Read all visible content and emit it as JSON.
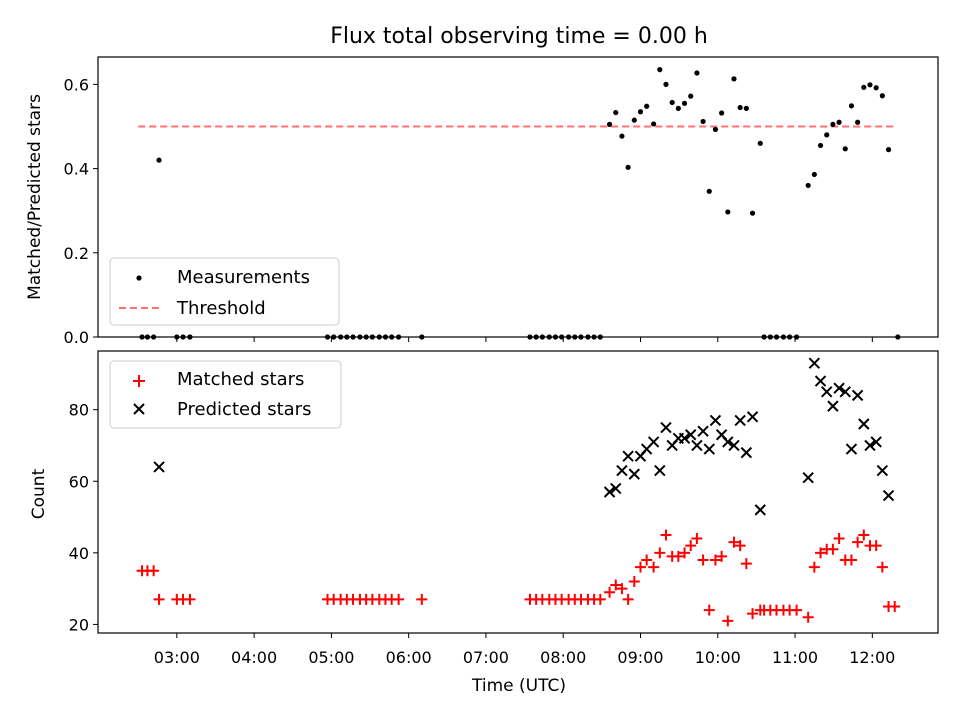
{
  "chart_data": [
    {
      "type": "scatter",
      "title": "Flux total observing time = 0.00 h",
      "xlabel": "",
      "ylabel": "Matched/Predicted stars",
      "ylim": [
        0,
        0.665
      ],
      "yticks": [
        0.0,
        0.2,
        0.4,
        0.6
      ],
      "ytick_labels": [
        "0.0",
        "0.2",
        "0.4",
        "0.6"
      ],
      "legend_position": "lower-left",
      "threshold": {
        "name": "Threshold",
        "y": 0.5,
        "x_range": [
          2.5,
          12.3
        ],
        "color": "#ff7070",
        "style": "dashed"
      },
      "series": [
        {
          "name": "Measurements",
          "marker": "dot",
          "color": "#000000",
          "points": [
            [
              2.55,
              0
            ],
            [
              2.62,
              0
            ],
            [
              2.7,
              0
            ],
            [
              2.77,
              0.42
            ],
            [
              3.0,
              0
            ],
            [
              3.08,
              0
            ],
            [
              3.17,
              0
            ],
            [
              4.95,
              0
            ],
            [
              5.03,
              0
            ],
            [
              5.12,
              0
            ],
            [
              5.2,
              0
            ],
            [
              5.28,
              0
            ],
            [
              5.37,
              0
            ],
            [
              5.45,
              0
            ],
            [
              5.53,
              0
            ],
            [
              5.62,
              0
            ],
            [
              5.7,
              0
            ],
            [
              5.78,
              0
            ],
            [
              5.87,
              0
            ],
            [
              6.17,
              0
            ],
            [
              7.57,
              0
            ],
            [
              7.65,
              0
            ],
            [
              7.73,
              0
            ],
            [
              7.82,
              0
            ],
            [
              7.9,
              0
            ],
            [
              7.98,
              0
            ],
            [
              8.07,
              0
            ],
            [
              8.15,
              0
            ],
            [
              8.23,
              0
            ],
            [
              8.32,
              0
            ],
            [
              8.4,
              0
            ],
            [
              8.48,
              0
            ],
            [
              8.6,
              0.505
            ],
            [
              8.68,
              0.533
            ],
            [
              8.76,
              0.477
            ],
            [
              8.84,
              0.403
            ],
            [
              8.92,
              0.515
            ],
            [
              9.0,
              0.535
            ],
            [
              9.08,
              0.548
            ],
            [
              9.17,
              0.506
            ],
            [
              9.25,
              0.635
            ],
            [
              9.33,
              0.6
            ],
            [
              9.41,
              0.557
            ],
            [
              9.49,
              0.543
            ],
            [
              9.57,
              0.555
            ],
            [
              9.65,
              0.572
            ],
            [
              9.73,
              0.627
            ],
            [
              9.81,
              0.512
            ],
            [
              9.89,
              0.346
            ],
            [
              9.97,
              0.493
            ],
            [
              10.05,
              0.532
            ],
            [
              10.13,
              0.297
            ],
            [
              10.21,
              0.613
            ],
            [
              10.29,
              0.545
            ],
            [
              10.37,
              0.543
            ],
            [
              10.45,
              0.294
            ],
            [
              10.55,
              0.46
            ],
            [
              10.6,
              0
            ],
            [
              10.68,
              0
            ],
            [
              10.76,
              0
            ],
            [
              10.85,
              0
            ],
            [
              10.93,
              0
            ],
            [
              11.02,
              0
            ],
            [
              11.17,
              0.36
            ],
            [
              11.25,
              0.386
            ],
            [
              11.33,
              0.455
            ],
            [
              11.41,
              0.48
            ],
            [
              11.49,
              0.505
            ],
            [
              11.57,
              0.51
            ],
            [
              11.65,
              0.447
            ],
            [
              11.73,
              0.549
            ],
            [
              11.81,
              0.51
            ],
            [
              11.89,
              0.593
            ],
            [
              11.97,
              0.599
            ],
            [
              12.05,
              0.592
            ],
            [
              12.13,
              0.573
            ],
            [
              12.21,
              0.445
            ],
            [
              12.33,
              0
            ]
          ]
        }
      ]
    },
    {
      "type": "scatter",
      "title": "",
      "xlabel": "Time (UTC)",
      "ylabel": "Count",
      "ylim": [
        17.6,
        96.4
      ],
      "yticks": [
        20,
        40,
        60,
        80
      ],
      "ytick_labels": [
        "20",
        "40",
        "60",
        "80"
      ],
      "xlim": [
        1.98,
        12.85
      ],
      "xticks": [
        3,
        4,
        5,
        6,
        7,
        8,
        9,
        10,
        11,
        12
      ],
      "xtick_labels": [
        "03:00",
        "04:00",
        "05:00",
        "06:00",
        "07:00",
        "08:00",
        "09:00",
        "10:00",
        "11:00",
        "12:00"
      ],
      "legend_position": "upper-left",
      "series": [
        {
          "name": "Matched stars",
          "marker": "plus",
          "color": "#ff0000",
          "points": [
            [
              2.55,
              35
            ],
            [
              2.62,
              35
            ],
            [
              2.7,
              35
            ],
            [
              2.77,
              27
            ],
            [
              3.0,
              27
            ],
            [
              3.08,
              27
            ],
            [
              3.17,
              27
            ],
            [
              4.95,
              27
            ],
            [
              5.03,
              27
            ],
            [
              5.12,
              27
            ],
            [
              5.2,
              27
            ],
            [
              5.28,
              27
            ],
            [
              5.37,
              27
            ],
            [
              5.45,
              27
            ],
            [
              5.53,
              27
            ],
            [
              5.62,
              27
            ],
            [
              5.7,
              27
            ],
            [
              5.78,
              27
            ],
            [
              5.87,
              27
            ],
            [
              6.17,
              27
            ],
            [
              7.57,
              27
            ],
            [
              7.65,
              27
            ],
            [
              7.73,
              27
            ],
            [
              7.82,
              27
            ],
            [
              7.9,
              27
            ],
            [
              7.98,
              27
            ],
            [
              8.07,
              27
            ],
            [
              8.15,
              27
            ],
            [
              8.23,
              27
            ],
            [
              8.32,
              27
            ],
            [
              8.4,
              27
            ],
            [
              8.48,
              27
            ],
            [
              8.6,
              29
            ],
            [
              8.68,
              31
            ],
            [
              8.76,
              30
            ],
            [
              8.84,
              27
            ],
            [
              8.92,
              32
            ],
            [
              9.0,
              36
            ],
            [
              9.08,
              38
            ],
            [
              9.17,
              36
            ],
            [
              9.25,
              40
            ],
            [
              9.33,
              45
            ],
            [
              9.41,
              39
            ],
            [
              9.49,
              39
            ],
            [
              9.57,
              40
            ],
            [
              9.65,
              42
            ],
            [
              9.73,
              44
            ],
            [
              9.81,
              38
            ],
            [
              9.89,
              24
            ],
            [
              9.97,
              38
            ],
            [
              10.05,
              39
            ],
            [
              10.13,
              21
            ],
            [
              10.21,
              43
            ],
            [
              10.29,
              42
            ],
            [
              10.37,
              37
            ],
            [
              10.45,
              23
            ],
            [
              10.55,
              24
            ],
            [
              10.6,
              24
            ],
            [
              10.68,
              24
            ],
            [
              10.76,
              24
            ],
            [
              10.85,
              24
            ],
            [
              10.93,
              24
            ],
            [
              11.02,
              24
            ],
            [
              11.17,
              22
            ],
            [
              11.25,
              36
            ],
            [
              11.33,
              40
            ],
            [
              11.41,
              41
            ],
            [
              11.49,
              41
            ],
            [
              11.57,
              44
            ],
            [
              11.65,
              38
            ],
            [
              11.73,
              38
            ],
            [
              11.81,
              43
            ],
            [
              11.89,
              45
            ],
            [
              11.97,
              42
            ],
            [
              12.05,
              42
            ],
            [
              12.13,
              36
            ],
            [
              12.21,
              25
            ],
            [
              12.29,
              25
            ]
          ]
        },
        {
          "name": "Predicted stars",
          "marker": "x",
          "color": "#000000",
          "points": [
            [
              2.77,
              64
            ],
            [
              8.6,
              57
            ],
            [
              8.68,
              58
            ],
            [
              8.76,
              63
            ],
            [
              8.84,
              67
            ],
            [
              8.92,
              62
            ],
            [
              9.0,
              67
            ],
            [
              9.08,
              69
            ],
            [
              9.17,
              71
            ],
            [
              9.25,
              63
            ],
            [
              9.33,
              75
            ],
            [
              9.41,
              70
            ],
            [
              9.49,
              72
            ],
            [
              9.57,
              72
            ],
            [
              9.65,
              73
            ],
            [
              9.73,
              70
            ],
            [
              9.81,
              74
            ],
            [
              9.89,
              69
            ],
            [
              9.97,
              77
            ],
            [
              10.05,
              73
            ],
            [
              10.13,
              71
            ],
            [
              10.21,
              70
            ],
            [
              10.29,
              77
            ],
            [
              10.37,
              68
            ],
            [
              10.45,
              78
            ],
            [
              10.55,
              52
            ],
            [
              11.17,
              61
            ],
            [
              11.25,
              93
            ],
            [
              11.33,
              88
            ],
            [
              11.41,
              85
            ],
            [
              11.49,
              81
            ],
            [
              11.57,
              86
            ],
            [
              11.65,
              85
            ],
            [
              11.73,
              69
            ],
            [
              11.81,
              84
            ],
            [
              11.89,
              76
            ],
            [
              11.97,
              70
            ],
            [
              12.05,
              71
            ],
            [
              12.13,
              63
            ],
            [
              12.21,
              56
            ]
          ]
        }
      ]
    }
  ]
}
